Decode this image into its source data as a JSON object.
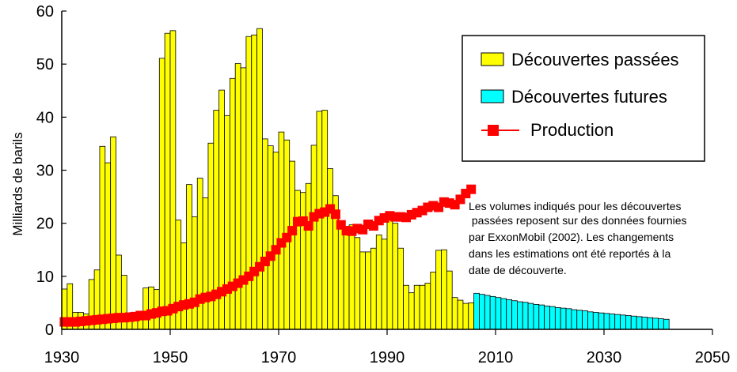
{
  "chart_data": {
    "type": "bar",
    "xlabel": "",
    "ylabel": "Milliards de barils",
    "xlim": [
      1930,
      2050
    ],
    "ylim": [
      0,
      60
    ],
    "x_ticks": [
      1930,
      1950,
      1970,
      1990,
      2010,
      2030,
      2050
    ],
    "y_ticks": [
      0,
      10,
      20,
      30,
      40,
      50,
      60
    ],
    "grid": false,
    "legend_position": "top-right",
    "colors": {
      "past": "#ffff00",
      "future": "#00ffff",
      "production": "#ff0000",
      "bar_edge": "#000000"
    },
    "series": [
      {
        "name": "Découvertes passées",
        "type": "bar",
        "x": [
          1930,
          1931,
          1932,
          1933,
          1934,
          1935,
          1936,
          1937,
          1938,
          1939,
          1940,
          1941,
          1942,
          1943,
          1944,
          1945,
          1946,
          1947,
          1948,
          1949,
          1950,
          1951,
          1952,
          1953,
          1954,
          1955,
          1956,
          1957,
          1958,
          1959,
          1960,
          1961,
          1962,
          1963,
          1964,
          1965,
          1966,
          1967,
          1968,
          1969,
          1970,
          1971,
          1972,
          1973,
          1974,
          1975,
          1976,
          1977,
          1978,
          1979,
          1980,
          1981,
          1982,
          1983,
          1984,
          1985,
          1986,
          1987,
          1988,
          1989,
          1990,
          1991,
          1992,
          1993,
          1994,
          1995,
          1996,
          1997,
          1998,
          1999,
          2000,
          2001,
          2002,
          2003,
          2004,
          2005
        ],
        "values": [
          7.6,
          8.6,
          3.2,
          3.2,
          2.9,
          9.4,
          11.2,
          34.5,
          31.4,
          36.3,
          14.0,
          10.2,
          2.3,
          2.2,
          2.5,
          7.8,
          8.0,
          7.5,
          51.1,
          55.8,
          56.3,
          20.6,
          16.3,
          27.3,
          21.2,
          28.5,
          24.8,
          35.1,
          41.3,
          45.1,
          40.3,
          47.3,
          50.1,
          49.3,
          55.2,
          55.5,
          56.7,
          35.9,
          34.6,
          33.4,
          37.2,
          35.7,
          31.7,
          26.2,
          25.8,
          27.5,
          34.7,
          41.1,
          41.3,
          30.3,
          25.2,
          19.4,
          19.0,
          19.7,
          17.3,
          14.6,
          14.6,
          15.3,
          17.8,
          17.0,
          20.9,
          20.0,
          15.3,
          8.3,
          6.9,
          8.3,
          8.3,
          8.7,
          10.8,
          14.9,
          15.0,
          11.0,
          6.0,
          5.5,
          4.9,
          5.0
        ]
      },
      {
        "name": "Découvertes futures",
        "type": "bar",
        "x": [
          2006,
          2007,
          2008,
          2009,
          2010,
          2011,
          2012,
          2013,
          2014,
          2015,
          2016,
          2017,
          2018,
          2019,
          2020,
          2021,
          2022,
          2023,
          2024,
          2025,
          2026,
          2027,
          2028,
          2029,
          2030,
          2031,
          2032,
          2033,
          2034,
          2035,
          2036,
          2037,
          2038,
          2039,
          2040,
          2041
        ],
        "values": [
          6.8,
          6.6,
          6.4,
          6.2,
          6.0,
          5.8,
          5.6,
          5.4,
          5.2,
          5.1,
          4.9,
          4.7,
          4.6,
          4.4,
          4.3,
          4.1,
          4.0,
          3.9,
          3.7,
          3.6,
          3.5,
          3.3,
          3.2,
          3.1,
          3.0,
          2.9,
          2.8,
          2.7,
          2.6,
          2.5,
          2.4,
          2.3,
          2.2,
          2.1,
          2.0,
          1.9
        ]
      },
      {
        "name": "Production",
        "type": "line",
        "x": [
          1930,
          1931,
          1932,
          1933,
          1934,
          1935,
          1936,
          1937,
          1938,
          1939,
          1940,
          1941,
          1942,
          1943,
          1944,
          1945,
          1946,
          1947,
          1948,
          1949,
          1950,
          1951,
          1952,
          1953,
          1954,
          1955,
          1956,
          1957,
          1958,
          1959,
          1960,
          1961,
          1962,
          1963,
          1964,
          1965,
          1966,
          1967,
          1968,
          1969,
          1970,
          1971,
          1972,
          1973,
          1974,
          1975,
          1976,
          1977,
          1978,
          1979,
          1980,
          1981,
          1982,
          1983,
          1984,
          1985,
          1986,
          1987,
          1988,
          1989,
          1990,
          1991,
          1992,
          1993,
          1994,
          1995,
          1996,
          1997,
          1998,
          1999,
          2000,
          2001,
          2002,
          2003,
          2004,
          2005
        ],
        "values": [
          1.4,
          1.4,
          1.4,
          1.5,
          1.6,
          1.7,
          1.8,
          1.9,
          2.0,
          2.1,
          2.2,
          2.2,
          2.3,
          2.4,
          2.6,
          2.6,
          2.9,
          3.1,
          3.4,
          3.5,
          3.9,
          4.3,
          4.6,
          4.8,
          5.1,
          5.7,
          6.0,
          6.2,
          6.6,
          7.1,
          7.6,
          8.1,
          8.7,
          9.3,
          10.0,
          10.9,
          11.8,
          12.8,
          13.8,
          15.0,
          16.3,
          17.3,
          18.6,
          20.3,
          20.4,
          19.5,
          21.2,
          21.8,
          22.1,
          22.7,
          21.7,
          19.7,
          18.6,
          18.5,
          19.0,
          18.8,
          19.8,
          19.5,
          20.5,
          21.0,
          21.4,
          21.2,
          21.2,
          21.1,
          21.6,
          22.0,
          22.4,
          23.0,
          23.3,
          23.0,
          24.0,
          23.8,
          23.5,
          24.5,
          25.6,
          26.4
        ]
      }
    ],
    "annotation": [
      "Les volumes indiqués pour les découvertes",
      " passées reposent sur des données fournies",
      "par ExxonMobil (2002). Les changements",
      "dans les estimations ont été reportés à la",
      "date de découverte."
    ]
  }
}
